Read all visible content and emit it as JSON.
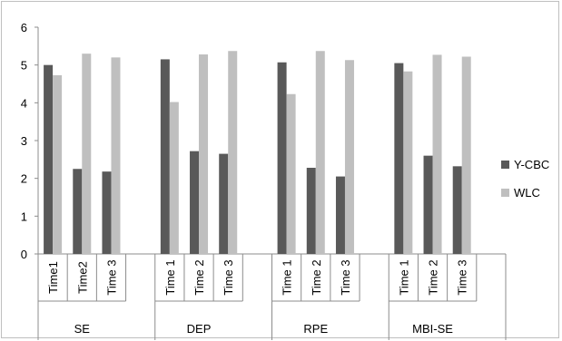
{
  "chart_data": {
    "type": "bar",
    "groups": [
      "SE",
      "DEP",
      "RPE",
      "MBI-SE"
    ],
    "subcategories": [
      "Time1",
      "Time 1",
      "Time 2",
      "Time 3"
    ],
    "x_labels": [
      [
        "Time1",
        "Time2",
        "Time 3"
      ],
      [
        "Time 1",
        "Time 2",
        "Time 3"
      ],
      [
        "Time 1",
        "Time 2",
        "Time 3"
      ],
      [
        "Time 1",
        "Time 2",
        "Time 3"
      ]
    ],
    "series": [
      {
        "name": "Y-CBC",
        "color": "#595959",
        "values": [
          [
            5.0,
            2.25,
            2.18
          ],
          [
            5.15,
            2.72,
            2.65
          ],
          [
            5.07,
            2.28,
            2.05
          ],
          [
            5.05,
            2.6,
            2.32
          ]
        ]
      },
      {
        "name": "WLC",
        "color": "#bfbfbf",
        "values": [
          [
            4.73,
            5.3,
            5.2
          ],
          [
            4.02,
            5.28,
            5.37
          ],
          [
            4.23,
            5.37,
            5.13
          ],
          [
            4.83,
            5.27,
            5.22
          ]
        ]
      }
    ],
    "y_ticks": [
      "0",
      "1",
      "2",
      "3",
      "4",
      "5",
      "6"
    ],
    "ylim": [
      0,
      6
    ],
    "grid": false,
    "legend": "right",
    "title": "",
    "xlabel": "",
    "ylabel": ""
  }
}
